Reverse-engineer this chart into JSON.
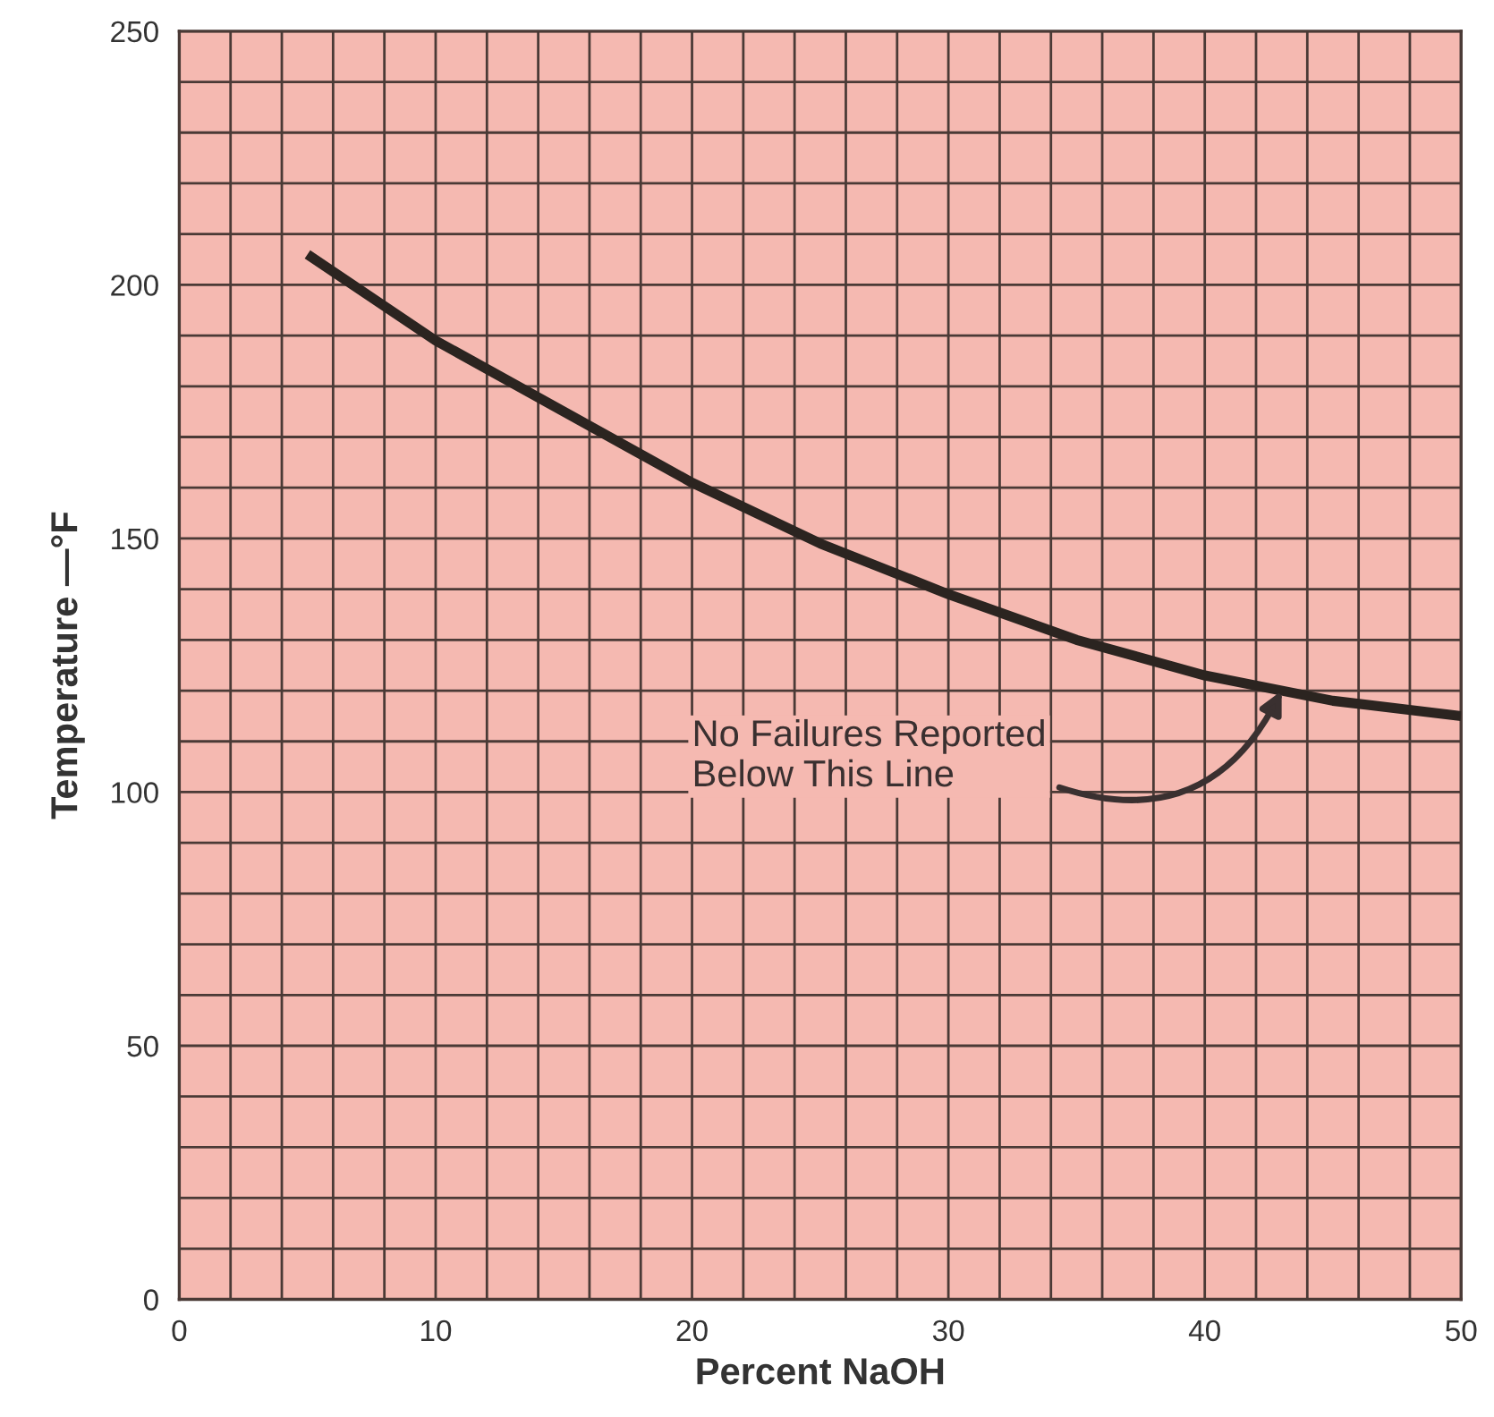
{
  "chart_data": {
    "type": "line",
    "xlabel": "Percent NaOH",
    "ylabel": "Temperature —°F",
    "x": [
      5,
      10,
      15,
      20,
      25,
      30,
      35,
      40,
      45,
      50
    ],
    "series": [
      {
        "color": "#2b2420",
        "values": [
          206,
          189,
          175,
          161,
          149,
          139,
          130,
          123,
          118,
          115
        ]
      }
    ],
    "xlim": [
      0,
      50
    ],
    "ylim": [
      0,
      250
    ],
    "xticks": [
      0,
      10,
      20,
      30,
      40,
      50
    ],
    "yticks": [
      0,
      50,
      100,
      150,
      200,
      250
    ],
    "grid": true,
    "marker": "none",
    "line_style": "solid",
    "annotations": [
      {
        "text": "No Failures Reported\nBelow This Line",
        "x": 43,
        "y": 120
      }
    ]
  }
}
